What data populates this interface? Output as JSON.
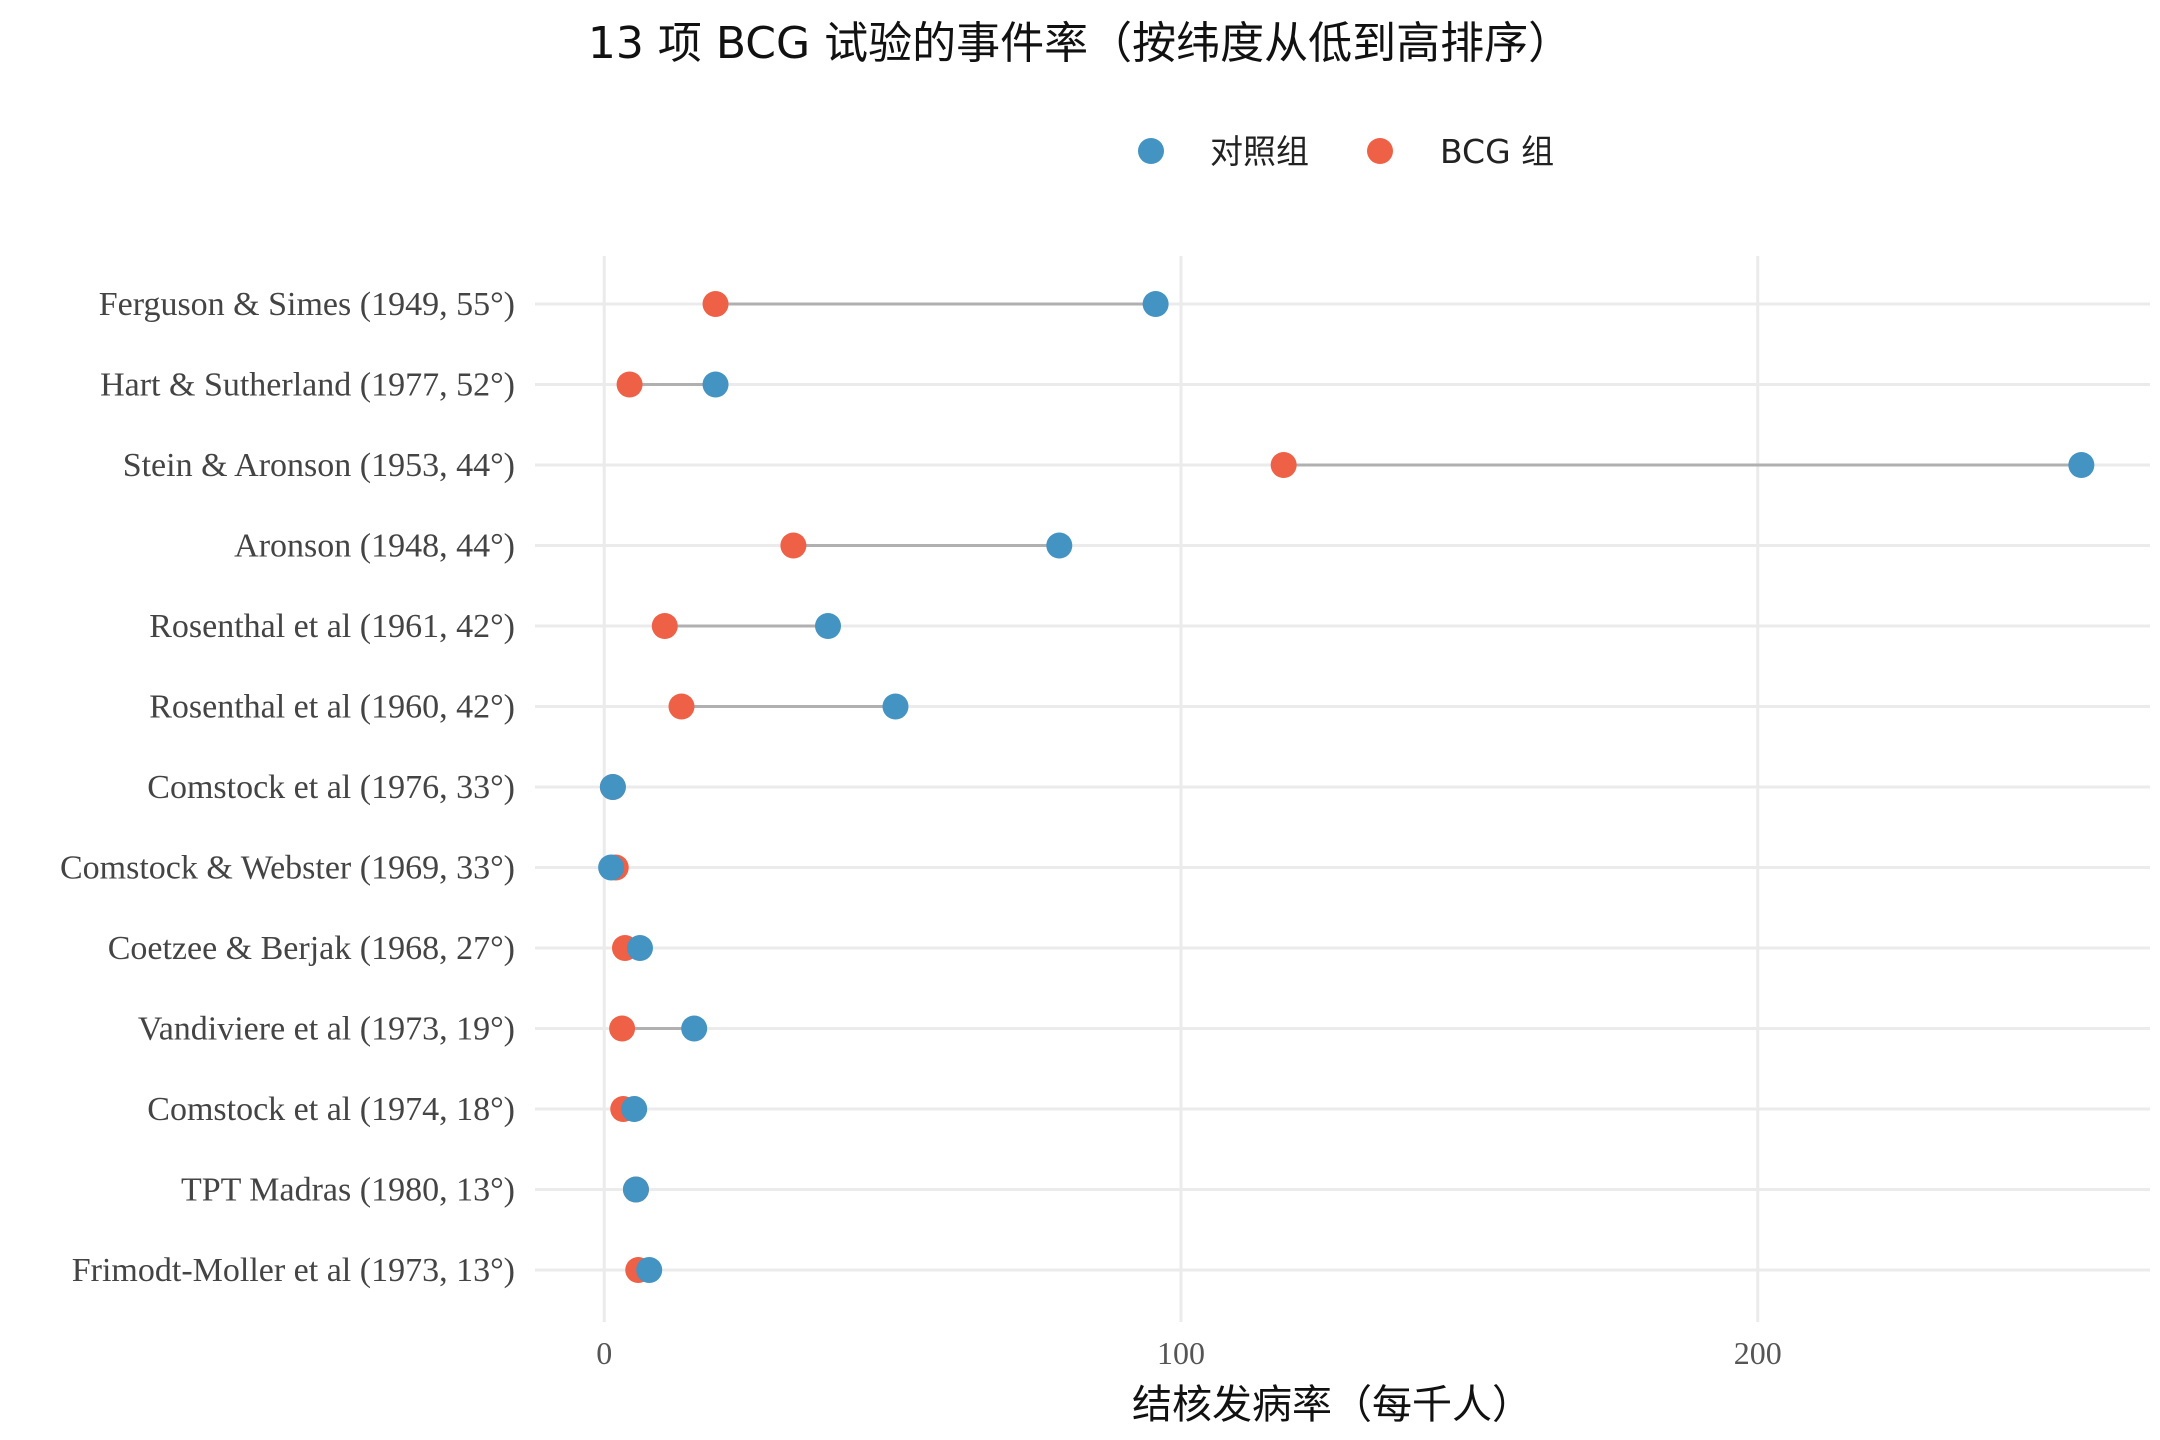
{
  "chart_data": {
    "type": "dumbbell",
    "title": "13 项 BCG 试验的事件率（按纬度从低到高排序）",
    "xlabel": "结核发病率（每千人）",
    "ylabel": "",
    "xlim": [
      -12,
      268
    ],
    "xticks": [
      0,
      100,
      200
    ],
    "grid": true,
    "legend_position": "top-right",
    "colors": {
      "control": "#4393c3",
      "bcg": "#ee6146",
      "segment": "#b0b0b0"
    },
    "series": [
      {
        "key": "control",
        "name": "对照组"
      },
      {
        "key": "bcg",
        "name": "BCG 组"
      }
    ],
    "categories": [
      "Ferguson & Simes (1949, 55°)",
      "Hart & Sutherland (1977, 52°)",
      "Stein & Aronson (1953, 44°)",
      "Aronson (1948, 44°)",
      "Rosenthal et al (1961, 42°)",
      "Rosenthal et al (1960, 42°)",
      "Comstock et al (1976, 33°)",
      "Comstock & Webster (1969, 33°)",
      "Coetzee & Berjak (1968, 27°)",
      "Vandiviere et al (1973, 19°)",
      "Comstock et al (1974, 18°)",
      "TPT Madras (1980, 13°)",
      "Frimodt-Moller et al (1973, 13°)"
    ],
    "control": [
      95.6,
      19.3,
      256.1,
      78.9,
      38.8,
      50.5,
      1.5,
      1.2,
      6.2,
      15.6,
      5.2,
      5.5,
      7.8
    ],
    "bcg": [
      19.3,
      4.4,
      117.8,
      32.8,
      10.5,
      13.4,
      1.5,
      2.0,
      3.6,
      3.1,
      3.3,
      5.5,
      5.9
    ]
  }
}
